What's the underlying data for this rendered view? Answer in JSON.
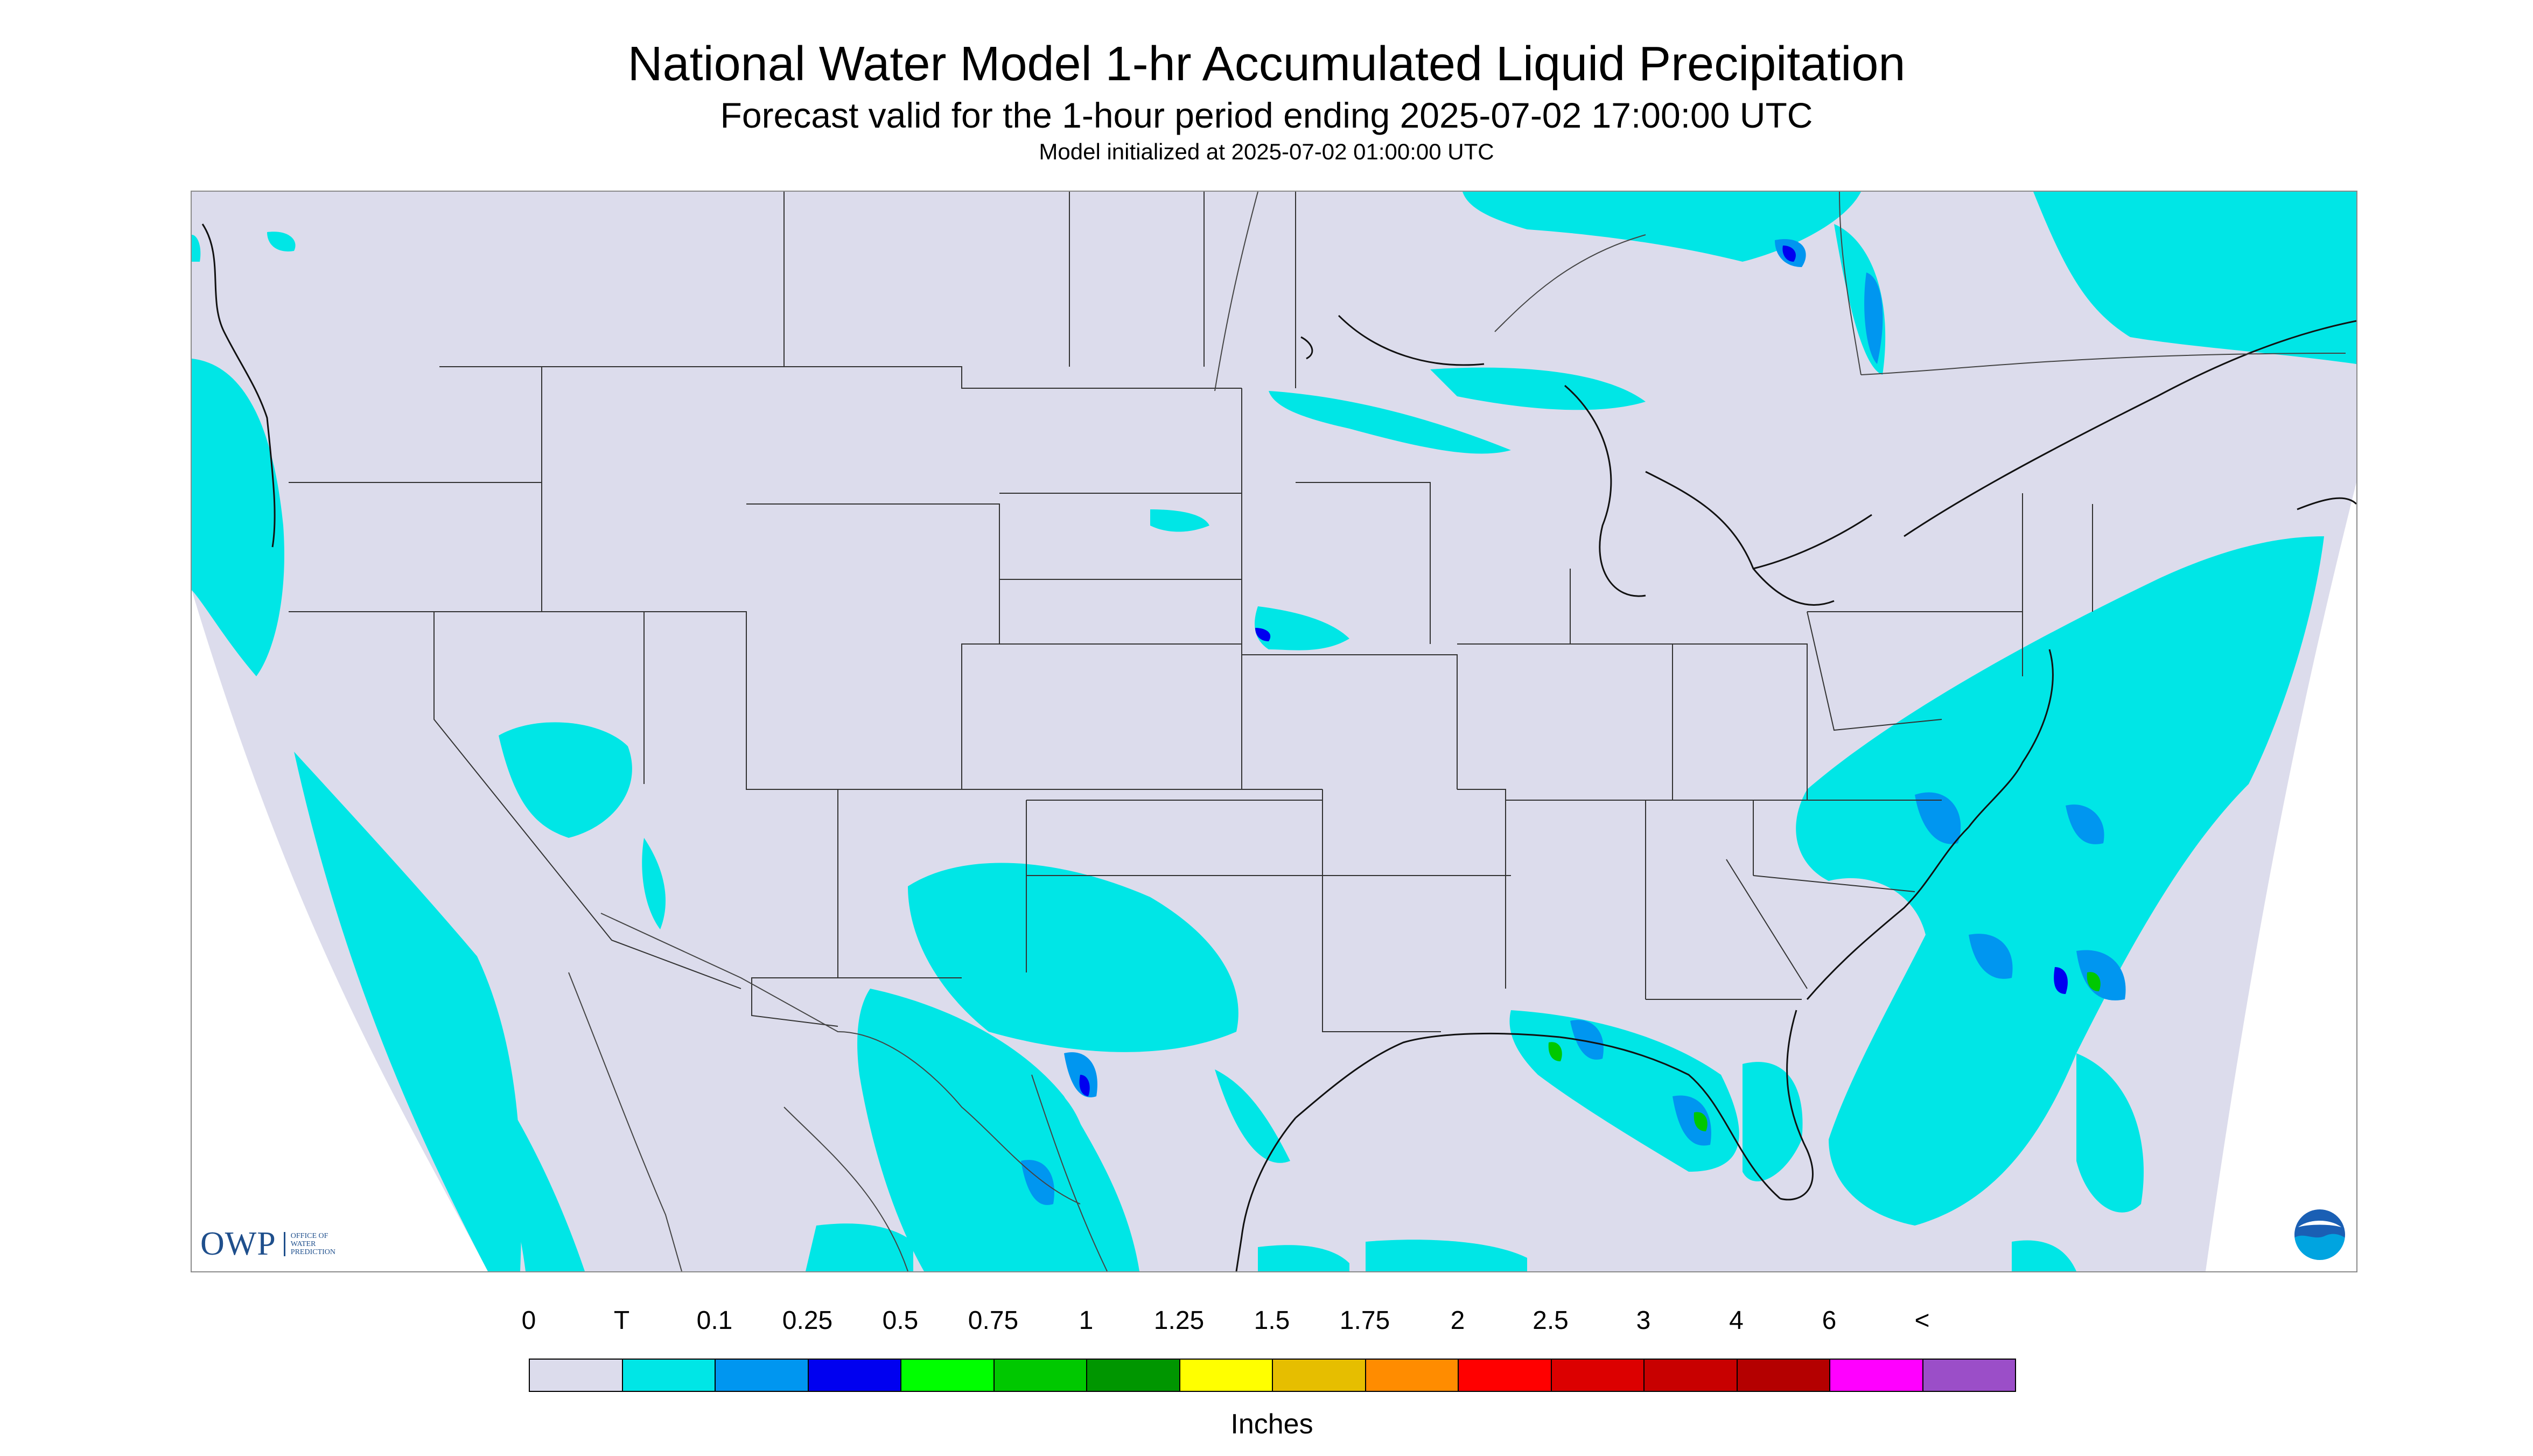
{
  "header": {
    "title": "National Water Model 1-hr Accumulated Liquid Precipitation",
    "subtitle": "Forecast valid for the 1-hour period ending 2025-07-02 17:00:00 UTC",
    "init": "Model initialized at 2025-07-02 01:00:00 UTC"
  },
  "map": {
    "region": "Contiguous United States",
    "land_color": "#dcdcec",
    "outside_color": "#ffffff",
    "border_color": "#333333",
    "projection_edge": "curved-lambert"
  },
  "logos": {
    "owp": {
      "letters": "OWP",
      "words": [
        "OFFICE OF",
        "WATER",
        "PREDICTION"
      ]
    },
    "noaa": {
      "icon": "noaa-logo-icon"
    }
  },
  "legend": {
    "unit": "Inches",
    "labels": [
      "0",
      "T",
      "0.1",
      "0.25",
      "0.5",
      "0.75",
      "1",
      "1.25",
      "1.5",
      "1.75",
      "2",
      "2.5",
      "3",
      "4",
      "6",
      "<"
    ],
    "colors": [
      "#dcdcec",
      "#00e6e6",
      "#0096f0",
      "#0000f0",
      "#00ff00",
      "#00c800",
      "#009600",
      "#ffff00",
      "#e6be00",
      "#ff8c00",
      "#ff0000",
      "#dc0000",
      "#c80000",
      "#b40000",
      "#ff00ff",
      "#9b4ec8"
    ]
  }
}
